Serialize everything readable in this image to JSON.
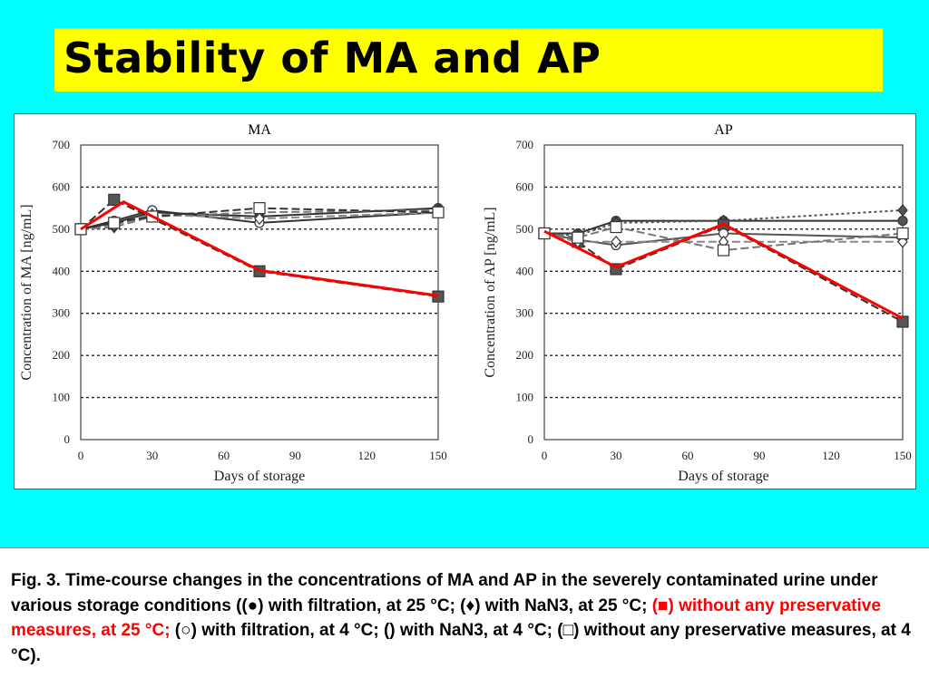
{
  "slide": {
    "title": "Stability of MA and AP"
  },
  "caption": {
    "part1": "Fig. 3. Time-course changes in the concentrations of MA and AP in the severely contaminated urine under various storage conditions ((●) with filtration, at 25 °C; (♦) with NaN3, at 25 °C; ",
    "part2_red": "(■) without any preservative measures, at 25 °C;",
    "part3": " (○) with filtration, at 4 °C; () with NaN3, at 4 °C; (□) without any preservative measures, at 4 °C).",
    "highlight_color": "#ff0000"
  },
  "chart_data": [
    {
      "type": "line",
      "title": "MA",
      "xlabel": "Days of storage",
      "ylabel": "Concentration of MA [ng/mL]",
      "xlim": [
        0,
        150
      ],
      "ylim": [
        0,
        700
      ],
      "xticks": [
        0,
        30,
        60,
        90,
        120,
        150
      ],
      "yticks": [
        0,
        100,
        200,
        300,
        400,
        500,
        600,
        700
      ],
      "grid": "horizontal dotted",
      "series": [
        {
          "marker": "filled-circle",
          "style": "solid",
          "color": "#333333",
          "x": [
            0,
            14,
            30,
            75,
            150
          ],
          "y": [
            500,
            515,
            540,
            530,
            550
          ]
        },
        {
          "marker": "filled-diamond",
          "style": "dashed",
          "color": "#777777",
          "x": [
            0,
            14,
            30,
            75,
            150
          ],
          "y": [
            500,
            505,
            530,
            540,
            545
          ]
        },
        {
          "marker": "filled-square",
          "style": "dashed",
          "color": "#333333",
          "x": [
            0,
            14,
            75,
            150
          ],
          "y": [
            500,
            570,
            400,
            340
          ]
        },
        {
          "marker": "open-circle",
          "style": "solid",
          "color": "#333333",
          "x": [
            0,
            14,
            30,
            75,
            150
          ],
          "y": [
            500,
            520,
            545,
            515,
            540
          ]
        },
        {
          "marker": "open-diamond",
          "style": "dashed",
          "color": "#888888",
          "x": [
            0,
            14,
            30,
            75,
            150
          ],
          "y": [
            500,
            510,
            535,
            525,
            540
          ]
        },
        {
          "marker": "open-square",
          "style": "dashed",
          "color": "#333333",
          "x": [
            0,
            14,
            30,
            75,
            150
          ],
          "y": [
            500,
            515,
            530,
            550,
            540
          ]
        }
      ],
      "highlight": {
        "color": "#ff0000",
        "x": [
          0,
          18,
          75,
          150
        ],
        "y": [
          500,
          565,
          402,
          342
        ]
      }
    },
    {
      "type": "line",
      "title": "AP",
      "xlabel": "Days of storage",
      "ylabel": "Concentration of AP [ng/mL]",
      "xlim": [
        0,
        150
      ],
      "ylim": [
        0,
        700
      ],
      "xticks": [
        0,
        30,
        60,
        90,
        120,
        150
      ],
      "yticks": [
        0,
        100,
        200,
        300,
        400,
        500,
        600,
        700
      ],
      "grid": "horizontal dotted",
      "series": [
        {
          "marker": "filled-circle",
          "style": "solid",
          "color": "#333333",
          "x": [
            0,
            14,
            30,
            75,
            150
          ],
          "y": [
            490,
            490,
            520,
            520,
            520
          ]
        },
        {
          "marker": "filled-diamond",
          "style": "dotted",
          "color": "#555555",
          "x": [
            0,
            14,
            30,
            75,
            150
          ],
          "y": [
            490,
            485,
            515,
            520,
            545
          ]
        },
        {
          "marker": "filled-square",
          "style": "dashed",
          "color": "#333333",
          "x": [
            0,
            14,
            30,
            75,
            150
          ],
          "y": [
            490,
            470,
            405,
            510,
            280
          ]
        },
        {
          "marker": "open-circle",
          "style": "solid",
          "color": "#555555",
          "x": [
            0,
            14,
            30,
            75,
            150
          ],
          "y": [
            490,
            475,
            462,
            490,
            480
          ]
        },
        {
          "marker": "open-diamond",
          "style": "dashed",
          "color": "#888888",
          "x": [
            0,
            14,
            30,
            75,
            150
          ],
          "y": [
            490,
            470,
            470,
            470,
            470
          ]
        },
        {
          "marker": "open-square",
          "style": "dashed",
          "color": "#777777",
          "x": [
            0,
            14,
            30,
            75,
            150
          ],
          "y": [
            490,
            480,
            505,
            450,
            490
          ]
        }
      ],
      "highlight": {
        "color": "#ff0000",
        "x": [
          0,
          30,
          75,
          150
        ],
        "y": [
          495,
          410,
          512,
          288
        ]
      }
    }
  ]
}
